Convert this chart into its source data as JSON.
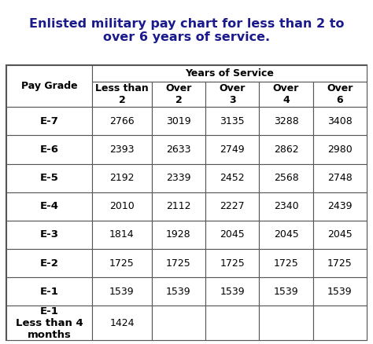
{
  "title": "Enlisted military pay chart for less than 2 to\nover 6 years of service.",
  "title_color": "#1a1a8c",
  "background_color": "#ffffff",
  "col_header_spans": "Years of Service",
  "col_headers": [
    "Less than\n2",
    "Over\n2",
    "Over\n3",
    "Over\n4",
    "Over\n6"
  ],
  "rows": [
    [
      "E-7",
      "2766",
      "3019",
      "3135",
      "3288",
      "3408"
    ],
    [
      "E-6",
      "2393",
      "2633",
      "2749",
      "2862",
      "2980"
    ],
    [
      "E-5",
      "2192",
      "2339",
      "2452",
      "2568",
      "2748"
    ],
    [
      "E-4",
      "2010",
      "2112",
      "2227",
      "2340",
      "2439"
    ],
    [
      "E-3",
      "1814",
      "1928",
      "2045",
      "2045",
      "2045"
    ],
    [
      "E-2",
      "1725",
      "1725",
      "1725",
      "1725",
      "1725"
    ],
    [
      "E-1",
      "1539",
      "1539",
      "1539",
      "1539",
      "1539"
    ],
    [
      "E-1\nLess than 4\nmonths",
      "1424",
      "",
      "",
      "",
      ""
    ]
  ],
  "border_color": "#555555",
  "title_fontsize": 11.5,
  "header_fontsize": 9.0,
  "cell_fontsize": 9.0,
  "grade_fontsize": 9.5
}
